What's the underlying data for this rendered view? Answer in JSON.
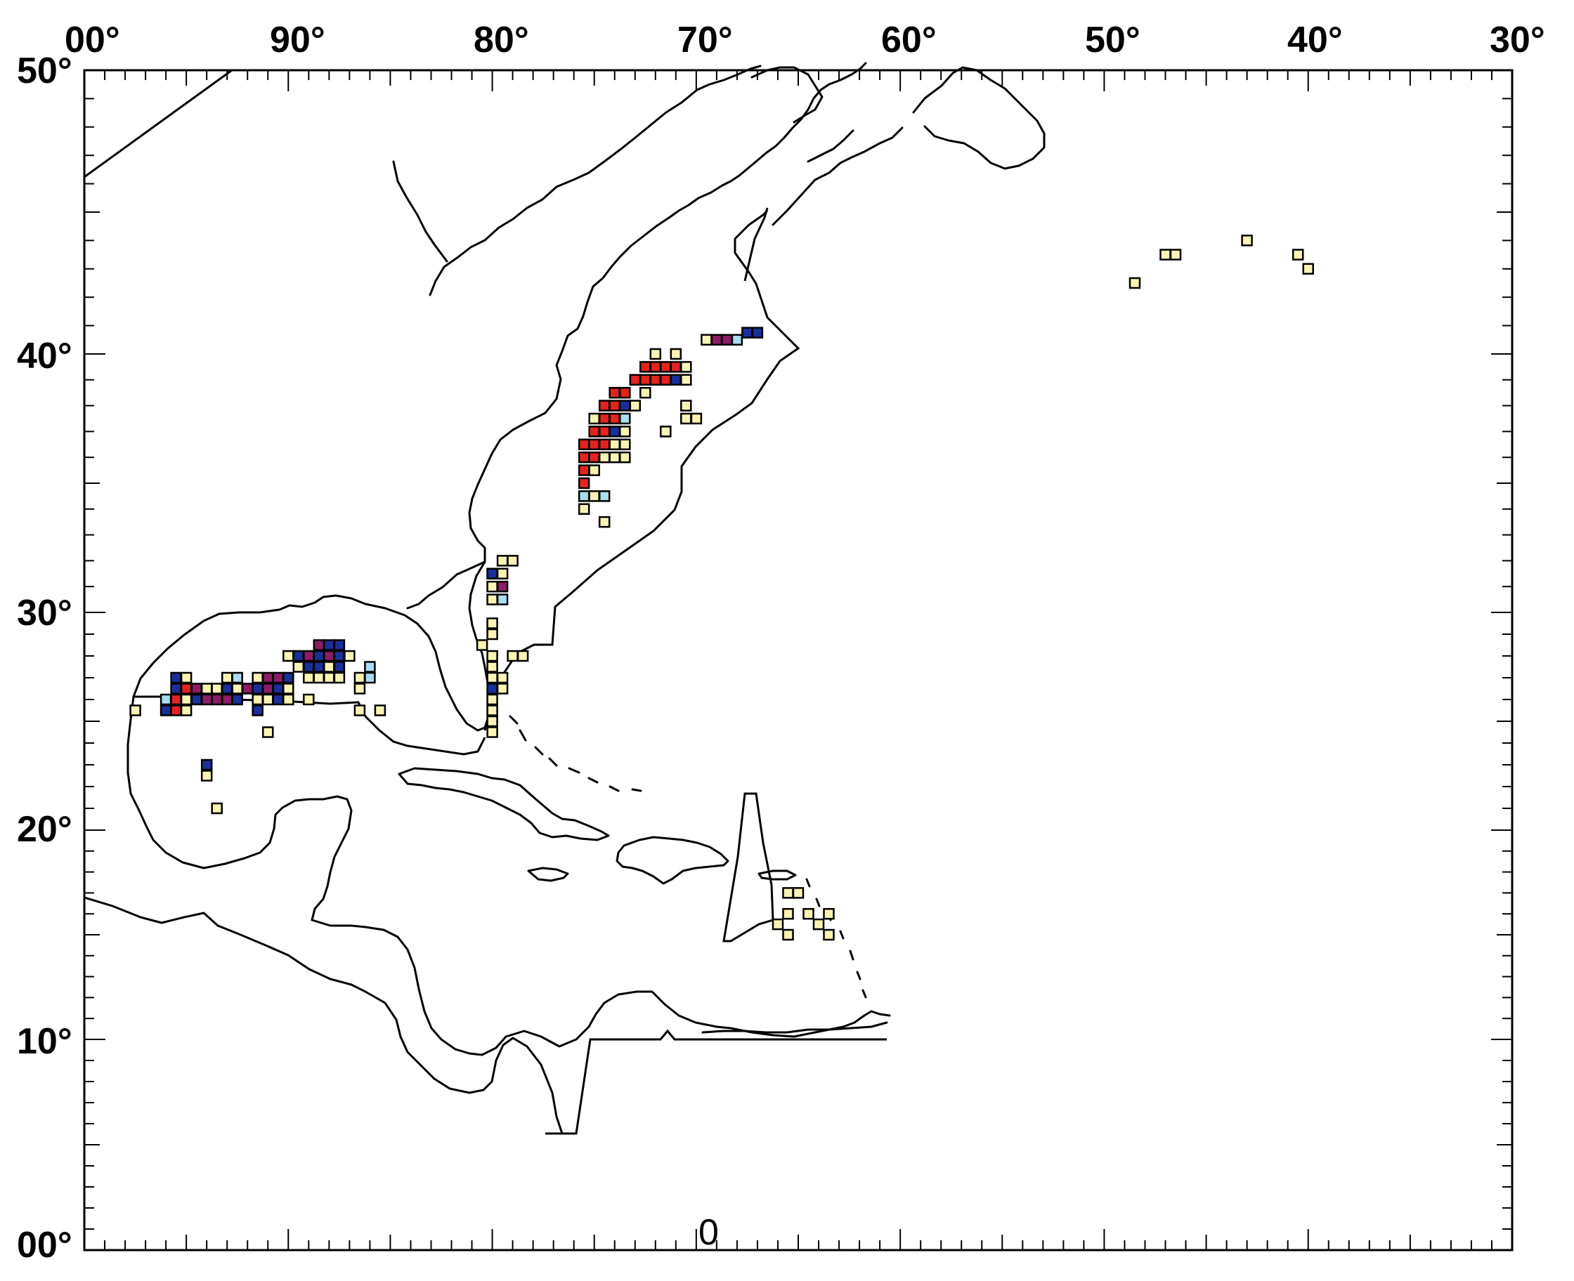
{
  "map": {
    "lon_labels": [
      "00°",
      "90°",
      "80°",
      "70°",
      "60°",
      "50°",
      "40°",
      "30°"
    ],
    "lat_labels": [
      "50°",
      "40°",
      "30°",
      "20°",
      "10°",
      "00°"
    ],
    "bottom_label": "0",
    "colors": {
      "y": "#f9f3b4",
      "l": "#a9dcef",
      "b": "#1a2f97",
      "p": "#8a1d64",
      "r": "#e3231f"
    },
    "cells": [
      [
        "y",
        -69.5,
        40.5
      ],
      [
        "p",
        -69,
        40.5
      ],
      [
        "p",
        -68.5,
        40.5
      ],
      [
        "l",
        -68,
        40.5
      ],
      [
        "b",
        -67.5,
        40.75
      ],
      [
        "b",
        -67,
        40.75
      ],
      [
        "r",
        -72.5,
        39.5
      ],
      [
        "r",
        -72,
        39.5
      ],
      [
        "r",
        -71.5,
        39.5
      ],
      [
        "r",
        -71,
        39.5
      ],
      [
        "y",
        -70.5,
        39.5
      ],
      [
        "y",
        -72,
        40
      ],
      [
        "y",
        -71,
        40
      ],
      [
        "r",
        -73,
        39
      ],
      [
        "r",
        -72.5,
        39
      ],
      [
        "r",
        -72,
        39
      ],
      [
        "r",
        -71.5,
        39
      ],
      [
        "b",
        -71,
        39
      ],
      [
        "y",
        -70.5,
        39
      ],
      [
        "y",
        -73.5,
        38.5
      ],
      [
        "y",
        -72.5,
        38.5
      ],
      [
        "r",
        -74,
        38.5
      ],
      [
        "r",
        -73.5,
        38.5
      ],
      [
        "r",
        -74.5,
        38
      ],
      [
        "r",
        -74,
        38
      ],
      [
        "b",
        -73.5,
        38
      ],
      [
        "y",
        -73,
        38
      ],
      [
        "y",
        -75,
        37.5
      ],
      [
        "r",
        -74.5,
        37.5
      ],
      [
        "r",
        -74,
        37.5
      ],
      [
        "l",
        -73.5,
        37.5
      ],
      [
        "y",
        -70.5,
        37.5
      ],
      [
        "y",
        -70,
        37.5
      ],
      [
        "y",
        -70.5,
        38
      ],
      [
        "r",
        -75,
        37
      ],
      [
        "r",
        -74.5,
        37
      ],
      [
        "b",
        -74,
        37
      ],
      [
        "y",
        -73.5,
        37
      ],
      [
        "b",
        -71.5,
        37
      ],
      [
        "y",
        -71.5,
        37
      ],
      [
        "r",
        -75.5,
        36.5
      ],
      [
        "r",
        -75,
        36.5
      ],
      [
        "r",
        -74.5,
        36.5
      ],
      [
        "y",
        -74,
        36.5
      ],
      [
        "y",
        -73.5,
        36.5
      ],
      [
        "r",
        -75.5,
        36
      ],
      [
        "r",
        -75,
        36
      ],
      [
        "y",
        -74.5,
        36
      ],
      [
        "y",
        -74,
        36
      ],
      [
        "y",
        -73.5,
        36
      ],
      [
        "r",
        -75.5,
        35.5
      ],
      [
        "y",
        -75,
        35.5
      ],
      [
        "r",
        -75.5,
        35
      ],
      [
        "l",
        -75.5,
        34.5
      ],
      [
        "y",
        -75,
        34.5
      ],
      [
        "l",
        -74.5,
        34.5
      ],
      [
        "y",
        -75.5,
        34
      ],
      [
        "y",
        -74.5,
        33.5
      ],
      [
        "y",
        -80,
        31.5
      ],
      [
        "y",
        -79.5,
        32
      ],
      [
        "y",
        -79,
        32
      ],
      [
        "b",
        -80,
        31.5
      ],
      [
        "y",
        -79.5,
        31.5
      ],
      [
        "p",
        -79.5,
        31
      ],
      [
        "y",
        -80,
        31
      ],
      [
        "l",
        -79.5,
        30.5
      ],
      [
        "y",
        -80,
        30.5
      ],
      [
        "y",
        -80,
        29.5
      ],
      [
        "y",
        -80,
        29
      ],
      [
        "y",
        -80.5,
        28.5
      ],
      [
        "y",
        -80,
        28
      ],
      [
        "y",
        -79,
        28
      ],
      [
        "y",
        -78.5,
        28
      ],
      [
        "y",
        -80,
        27.5
      ],
      [
        "y",
        -80,
        27
      ],
      [
        "b",
        -80,
        26.5
      ],
      [
        "y",
        -79.5,
        26.5
      ],
      [
        "y",
        -80,
        26
      ],
      [
        "y",
        -80,
        25.5
      ],
      [
        "y",
        -80,
        25
      ],
      [
        "y",
        -80,
        24.5
      ],
      [
        "y",
        -79.5,
        27
      ],
      [
        "p",
        -88.5,
        28.5
      ],
      [
        "b",
        -88,
        28.5
      ],
      [
        "b",
        -87.5,
        28.5
      ],
      [
        "p",
        -89,
        28
      ],
      [
        "b",
        -88.5,
        28
      ],
      [
        "p",
        -88,
        28
      ],
      [
        "b",
        -87.5,
        28
      ],
      [
        "y",
        -87,
        28
      ],
      [
        "y",
        -90,
        28
      ],
      [
        "b",
        -89.5,
        28
      ],
      [
        "b",
        -89,
        27.5
      ],
      [
        "b",
        -88.5,
        27.5
      ],
      [
        "y",
        -88,
        27.5
      ],
      [
        "b",
        -87.5,
        27.5
      ],
      [
        "y",
        -89.5,
        27.5
      ],
      [
        "y",
        -89,
        27
      ],
      [
        "y",
        -88.5,
        27
      ],
      [
        "y",
        -88,
        27
      ],
      [
        "y",
        -87.5,
        27
      ],
      [
        "l",
        -86,
        27.5
      ],
      [
        "y",
        -86.5,
        27
      ],
      [
        "l",
        -86,
        27
      ],
      [
        "y",
        -86.5,
        26.5
      ],
      [
        "p",
        -91,
        27
      ],
      [
        "p",
        -90.5,
        27
      ],
      [
        "b",
        -90,
        27
      ],
      [
        "y",
        -91.5,
        27
      ],
      [
        "l",
        -92.5,
        27
      ],
      [
        "y",
        -93,
        27
      ],
      [
        "b",
        -95.5,
        27
      ],
      [
        "y",
        -95,
        27
      ],
      [
        "b",
        -95.5,
        26.5
      ],
      [
        "r",
        -95,
        26.5
      ],
      [
        "p",
        -94.5,
        26.5
      ],
      [
        "y",
        -94,
        26.5
      ],
      [
        "y",
        -93.5,
        26.5
      ],
      [
        "b",
        -93,
        26.5
      ],
      [
        "y",
        -92.5,
        26.5
      ],
      [
        "p",
        -92,
        26.5
      ],
      [
        "b",
        -91.5,
        26.5
      ],
      [
        "p",
        -91,
        26.5
      ],
      [
        "b",
        -90.5,
        26.5
      ],
      [
        "y",
        -90,
        26.5
      ],
      [
        "l",
        -96,
        26
      ],
      [
        "r",
        -95.5,
        26
      ],
      [
        "y",
        -95,
        26
      ],
      [
        "b",
        -94.5,
        26
      ],
      [
        "p",
        -94,
        26
      ],
      [
        "p",
        -93.5,
        26
      ],
      [
        "p",
        -93,
        26
      ],
      [
        "b",
        -92.5,
        26
      ],
      [
        "y",
        -91.5,
        26
      ],
      [
        "y",
        -91,
        26
      ],
      [
        "b",
        -90.5,
        26
      ],
      [
        "y",
        -90,
        26
      ],
      [
        "y",
        -89,
        26
      ],
      [
        "b",
        -96,
        25.5
      ],
      [
        "r",
        -95.5,
        25.5
      ],
      [
        "y",
        -95,
        25.5
      ],
      [
        "b",
        -91.5,
        25.5
      ],
      [
        "y",
        -97.5,
        25.5
      ],
      [
        "y",
        -86.5,
        25.5
      ],
      [
        "y",
        -85.5,
        25.5
      ],
      [
        "y",
        -91,
        24.5
      ],
      [
        "b",
        -94,
        23
      ],
      [
        "y",
        -94,
        22.5
      ],
      [
        "y",
        -93.5,
        21
      ],
      [
        "y",
        -65.5,
        17
      ],
      [
        "y",
        -65,
        17
      ],
      [
        "y",
        -65.5,
        16
      ],
      [
        "y",
        -64.5,
        16
      ],
      [
        "y",
        -64,
        15.5
      ],
      [
        "y",
        -63.5,
        16
      ],
      [
        "y",
        -66,
        15.5
      ],
      [
        "y",
        -65.5,
        15
      ],
      [
        "y",
        -63.5,
        15
      ],
      [
        "y",
        -48.5,
        42.5
      ],
      [
        "y",
        -47,
        43.5
      ],
      [
        "y",
        -46.5,
        43.5
      ],
      [
        "y",
        -43,
        44
      ],
      [
        "y",
        -40.5,
        43.5
      ],
      [
        "y",
        -40,
        43
      ]
    ]
  }
}
